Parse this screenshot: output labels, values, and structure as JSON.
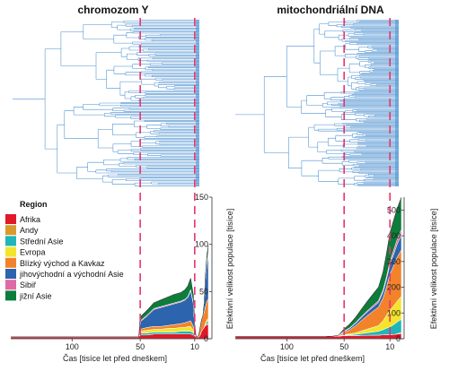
{
  "colors": {
    "tree": "#4a8fd0",
    "marker": "#e8336d",
    "axis": "#333333"
  },
  "legend": {
    "title": "Region",
    "entries": [
      {
        "label": "Afrika",
        "color": "#e0192b"
      },
      {
        "label": "Andy",
        "color": "#d99a2b"
      },
      {
        "label": "Střední Asie",
        "color": "#1fb5b9"
      },
      {
        "label": "Evropa",
        "color": "#f2e52c"
      },
      {
        "label": "Blízký východ a Kavkaz",
        "color": "#f2832a"
      },
      {
        "label": "jihovýchodní a východní Asie",
        "color": "#2c64ae"
      },
      {
        "label": "Sibiř",
        "color": "#df6aa5"
      },
      {
        "label": "jižní Asie",
        "color": "#0c7d3a"
      }
    ]
  },
  "chart_data": [
    {
      "type": "area",
      "title": "chromozom Y",
      "xlabel": "Čas [tisíce let před dneškem]",
      "ylabel": "",
      "x_direction": "reversed",
      "xlim": [
        145,
        0
      ],
      "ylim": [
        0,
        150
      ],
      "x_ticks": [
        100,
        50,
        10
      ],
      "y_ticks": [
        0,
        50,
        100,
        150
      ],
      "marker_lines_x": [
        50,
        10
      ],
      "tree_panel": true,
      "x": [
        145,
        120,
        100,
        80,
        60,
        51,
        50,
        45,
        40,
        35,
        30,
        25,
        20,
        17,
        15,
        13,
        11,
        10,
        9,
        8,
        7,
        6,
        5,
        4,
        3,
        2,
        1,
        0
      ],
      "series": [
        {
          "name": "Afrika",
          "values": [
            2,
            2,
            2,
            2,
            2,
            2,
            4,
            4,
            5,
            5,
            5,
            5,
            5,
            5,
            5,
            5,
            4,
            3,
            2,
            2,
            2,
            4,
            8,
            10,
            12,
            14,
            15,
            15
          ]
        },
        {
          "name": "Andy",
          "values": [
            0,
            0,
            0,
            0,
            0,
            0,
            0,
            0,
            0,
            0,
            0,
            0,
            0,
            0,
            0,
            0,
            0,
            0,
            0,
            0,
            0,
            0,
            0,
            0,
            0,
            1,
            1,
            1
          ]
        },
        {
          "name": "Střední Asie",
          "values": [
            0,
            0,
            0,
            0,
            0,
            0,
            2,
            2,
            2,
            2,
            2,
            2,
            3,
            3,
            3,
            3,
            2,
            1,
            0,
            0,
            0,
            0,
            0,
            0,
            0,
            1,
            2,
            3
          ]
        },
        {
          "name": "Evropa",
          "values": [
            0,
            0,
            0,
            0,
            0,
            0,
            2,
            3,
            3,
            3,
            4,
            4,
            4,
            4,
            5,
            5,
            3,
            1,
            0,
            0,
            0,
            0,
            0,
            0,
            0,
            1,
            2,
            3
          ]
        },
        {
          "name": "Blízký východ a Kavkaz",
          "values": [
            0,
            0,
            0,
            0,
            0,
            0,
            2,
            3,
            3,
            3,
            3,
            4,
            4,
            5,
            5,
            6,
            4,
            1,
            0,
            0,
            2,
            8,
            12,
            14,
            16,
            18,
            20,
            20
          ]
        },
        {
          "name": "jihovýchodní a východní Asie",
          "values": [
            0,
            0,
            0,
            0,
            0,
            0,
            8,
            12,
            18,
            20,
            21,
            22,
            23,
            24,
            26,
            32,
            24,
            6,
            0,
            0,
            0,
            0,
            0,
            0,
            10,
            30,
            40,
            45
          ]
        },
        {
          "name": "Sibiř",
          "values": [
            0,
            0,
            0,
            0,
            0,
            0,
            1,
            1,
            1,
            1,
            1,
            1,
            1,
            1,
            1,
            1,
            1,
            0,
            0,
            0,
            0,
            0,
            0,
            0,
            0,
            2,
            3,
            4
          ]
        },
        {
          "name": "jižní Asie",
          "values": [
            0,
            0,
            0,
            0,
            0,
            0,
            4,
            5,
            6,
            7,
            8,
            9,
            9,
            10,
            11,
            12,
            8,
            3,
            0,
            0,
            0,
            0,
            0,
            0,
            0,
            3,
            6,
            8
          ]
        }
      ]
    },
    {
      "type": "area",
      "title": "mitochondriální DNA",
      "xlabel": "Čas [tisíce let před dneškem]",
      "ylabel": "Efektivní velikost populace [tisíce]",
      "x_direction": "reversed",
      "xlim": [
        145,
        0
      ],
      "ylim": [
        0,
        550
      ],
      "x_ticks": [
        100,
        50,
        10
      ],
      "y_ticks": [
        0,
        100,
        200,
        300,
        400,
        500
      ],
      "marker_lines_x": [
        50,
        10
      ],
      "tree_panel": true,
      "x": [
        145,
        120,
        100,
        80,
        70,
        60,
        55,
        50,
        45,
        40,
        35,
        30,
        25,
        20,
        16,
        13,
        10,
        8,
        6,
        4,
        2,
        0
      ],
      "series": [
        {
          "name": "Afrika",
          "values": [
            8,
            8,
            8,
            8,
            9,
            10,
            10,
            12,
            12,
            12,
            13,
            13,
            14,
            14,
            15,
            16,
            16,
            16,
            17,
            18,
            19,
            20
          ]
        },
        {
          "name": "Andy",
          "values": [
            0,
            0,
            0,
            0,
            0,
            0,
            0,
            0,
            0,
            0,
            0,
            0,
            0,
            0,
            0,
            0,
            0,
            0,
            0,
            1,
            3,
            5
          ]
        },
        {
          "name": "Střední Asie",
          "values": [
            0,
            0,
            0,
            0,
            0,
            0,
            0,
            2,
            3,
            5,
            7,
            10,
            12,
            15,
            20,
            25,
            30,
            35,
            40,
            45,
            48,
            50
          ]
        },
        {
          "name": "Evropa",
          "values": [
            0,
            0,
            0,
            0,
            0,
            0,
            0,
            2,
            4,
            6,
            10,
            14,
            18,
            22,
            35,
            50,
            65,
            70,
            75,
            80,
            85,
            90
          ]
        },
        {
          "name": "Blízký východ a Kavkaz",
          "values": [
            0,
            0,
            0,
            0,
            0,
            0,
            2,
            8,
            16,
            28,
            40,
            52,
            62,
            72,
            88,
            110,
            140,
            150,
            160,
            170,
            175,
            180
          ]
        },
        {
          "name": "jihovýchodní a východní Asie",
          "values": [
            0,
            0,
            0,
            0,
            0,
            0,
            0,
            4,
            6,
            9,
            12,
            14,
            16,
            18,
            24,
            30,
            38,
            42,
            46,
            50,
            54,
            57
          ]
        },
        {
          "name": "Sibiř",
          "values": [
            0,
            0,
            0,
            0,
            0,
            0,
            0,
            2,
            2,
            3,
            4,
            5,
            6,
            7,
            8,
            10,
            12,
            14,
            16,
            18,
            20,
            22
          ]
        },
        {
          "name": "jižní Asie",
          "values": [
            0,
            0,
            0,
            0,
            0,
            0,
            1,
            8,
            14,
            20,
            28,
            36,
            44,
            52,
            70,
            90,
            110,
            115,
            118,
            120,
            122,
            125
          ]
        }
      ]
    }
  ]
}
